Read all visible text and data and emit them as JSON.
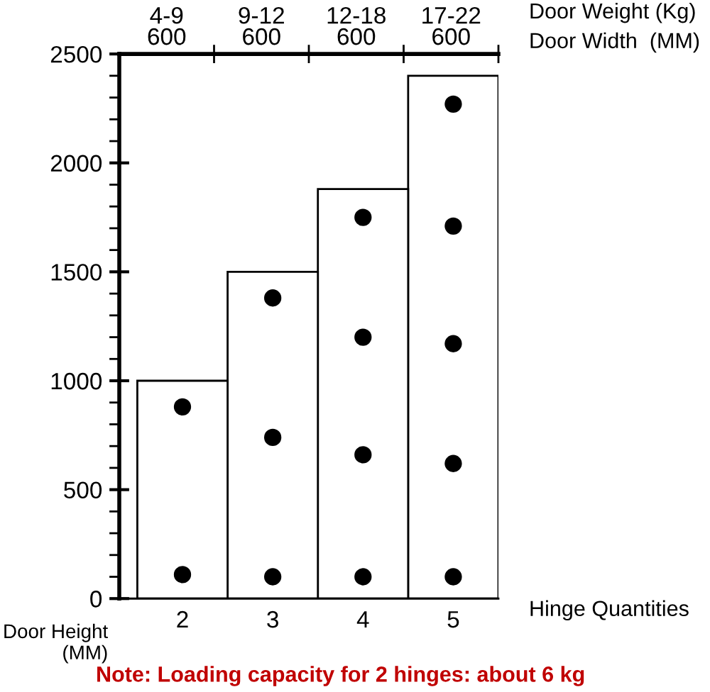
{
  "chart_data": {
    "type": "bar",
    "xlabel": "Hinge Quantities",
    "ylabel": "Door Height\n(MM)",
    "x2label": "Door Weight (Kg)\nDoor Width  (MM)",
    "annotations": [
      "Note: Loading capacity for 2 hinges: about 6 kg",
      "4-9\n600",
      "9-12\n600",
      "12-18\n600",
      "17-22\n600"
    ],
    "x": [
      2,
      3,
      4,
      5
    ],
    "series": [
      {
        "color": "#ffffff",
        "values": [
          1000,
          1500,
          1880,
          2400
        ]
      },
      {
        "type": "scatter",
        "color": "#000000",
        "x": [
          2,
          2,
          3,
          3,
          3,
          4,
          4,
          4,
          4,
          5,
          5,
          5,
          5,
          5
        ],
        "values": [
          880,
          110,
          1380,
          740,
          100,
          1750,
          1200,
          660,
          100,
          2270,
          1710,
          1170,
          620,
          100
        ]
      }
    ],
    "xlim": [
      1.3,
      5.5
    ],
    "xticks": [
      2,
      3,
      4,
      5
    ],
    "ylim": [
      0,
      2500
    ],
    "yticks": [
      0,
      500,
      1000,
      1500,
      2000,
      2500
    ],
    "grid": false,
    "legend": false,
    "marker": "circle"
  }
}
